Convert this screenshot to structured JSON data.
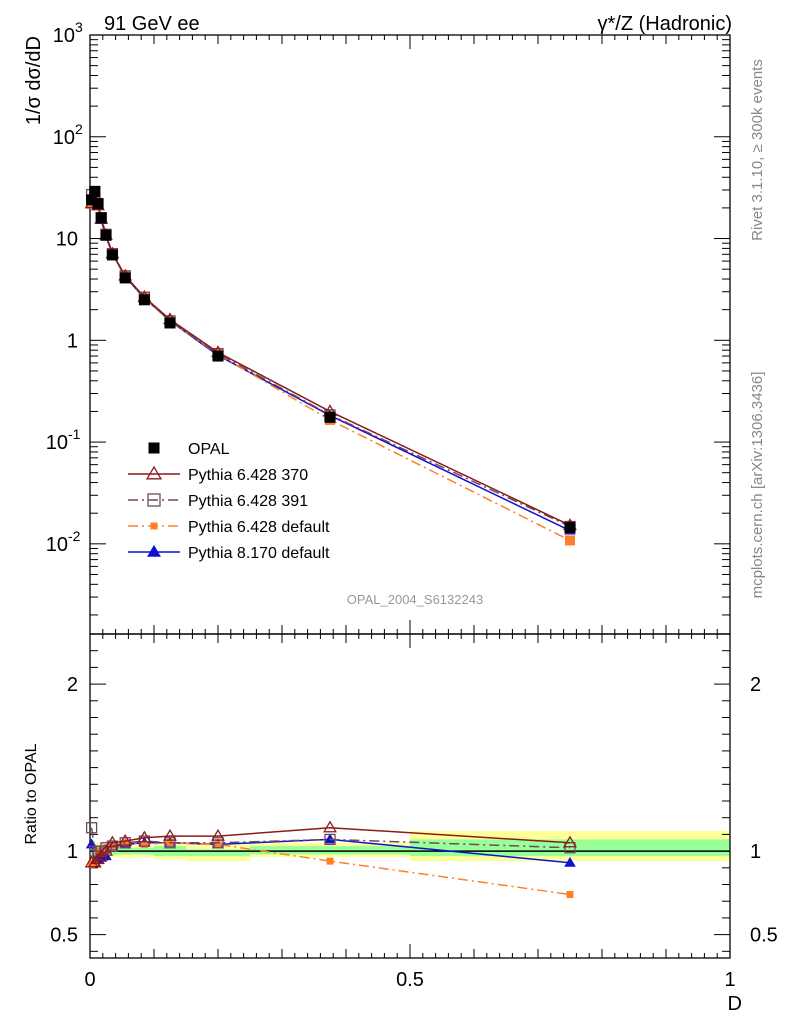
{
  "header": {
    "left": "91 GeV ee",
    "right": "γ*/Z (Hadronic)"
  },
  "side": {
    "rivet": "Rivet 3.1.10, ≥ 300k events",
    "mcplots": "mcplots.cern.ch [arXiv:1306.3436]"
  },
  "watermark": "OPAL_2004_S6132243",
  "chart_data": [
    {
      "type": "line",
      "title": "91 GeV ee",
      "ylabel": "1/σ dσ/dD",
      "yscale": "log",
      "ylim": [
        0.0013,
        1000
      ],
      "xlim": [
        0,
        1
      ],
      "ytick_labels": [
        "10^-2",
        "10^-1",
        "1",
        "10",
        "10^2",
        "10^3"
      ],
      "x": [
        0.0025,
        0.0075,
        0.0125,
        0.0175,
        0.025,
        0.035,
        0.055,
        0.085,
        0.125,
        0.2,
        0.375,
        0.75
      ],
      "series": [
        {
          "name": "OPAL",
          "color": "#000000",
          "marker": "filled-square",
          "values": [
            24,
            29,
            22,
            16,
            10.8,
            6.9,
            4.1,
            2.5,
            1.48,
            0.7,
            0.175,
            0.0145
          ]
        },
        {
          "name": "Pythia 6.428 370",
          "color": "#8b1a1a",
          "marker": "open-triangle",
          "dash": "solid",
          "values": [
            22,
            27,
            21,
            15.5,
            10.8,
            7.1,
            4.3,
            2.65,
            1.6,
            0.76,
            0.2,
            0.0152
          ]
        },
        {
          "name": "Pythia 6.428 391",
          "color": "#6e4a5a",
          "marker": "open-square",
          "dash": "dash-dot",
          "values": [
            27,
            29,
            22,
            16,
            11,
            7.1,
            4.3,
            2.65,
            1.55,
            0.74,
            0.185,
            0.0148
          ]
        },
        {
          "name": "Pythia 6.428 default",
          "color": "#ff7f2a",
          "marker": "filled-square",
          "dash": "dash-dot",
          "values": [
            22,
            27,
            22,
            16,
            11,
            7.1,
            4.3,
            2.6,
            1.55,
            0.73,
            0.165,
            0.0108
          ]
        },
        {
          "name": "Pythia 8.170 default",
          "color": "#1010d0",
          "marker": "filled-triangle",
          "dash": "solid",
          "values": [
            25,
            27,
            21,
            15.2,
            10.4,
            7.1,
            4.2,
            2.6,
            1.55,
            0.71,
            0.183,
            0.0135
          ]
        }
      ],
      "legend_position": "bottom-left"
    },
    {
      "type": "line",
      "ylabel": "Ratio to OPAL",
      "xlabel": "D",
      "ylim": [
        0.36,
        2.3
      ],
      "xlim": [
        0,
        1
      ],
      "ytick_labels": [
        "0.5",
        "1",
        "2"
      ],
      "xtick_labels": [
        "0",
        "0.5",
        "1"
      ],
      "x": [
        0.0025,
        0.0075,
        0.0125,
        0.0175,
        0.025,
        0.035,
        0.055,
        0.085,
        0.125,
        0.2,
        0.375,
        0.75
      ],
      "bins": [
        [
          0,
          0.005
        ],
        [
          0.005,
          0.01
        ],
        [
          0.01,
          0.015
        ],
        [
          0.015,
          0.02
        ],
        [
          0.02,
          0.03
        ],
        [
          0.03,
          0.04
        ],
        [
          0.04,
          0.07
        ],
        [
          0.07,
          0.1
        ],
        [
          0.1,
          0.15
        ],
        [
          0.15,
          0.25
        ],
        [
          0.25,
          0.5
        ],
        [
          0.5,
          1
        ]
      ],
      "band_green": [
        [
          0.96,
          1.04
        ],
        [
          0.97,
          1.03
        ],
        [
          0.97,
          1.03
        ],
        [
          0.97,
          1.03
        ],
        [
          0.975,
          1.025
        ],
        [
          0.975,
          1.025
        ],
        [
          0.98,
          1.02
        ],
        [
          0.98,
          1.02
        ],
        [
          0.97,
          1.03
        ],
        [
          0.97,
          1.01
        ],
        [
          0.98,
          1.03
        ],
        [
          0.97,
          1.07
        ]
      ],
      "band_yellow": [
        [
          0.93,
          1.07
        ],
        [
          0.95,
          1.05
        ],
        [
          0.95,
          1.05
        ],
        [
          0.95,
          1.05
        ],
        [
          0.96,
          1.04
        ],
        [
          0.96,
          1.04
        ],
        [
          0.96,
          1.04
        ],
        [
          0.965,
          1.035
        ],
        [
          0.95,
          1.05
        ],
        [
          0.94,
          1.04
        ],
        [
          0.965,
          1.05
        ],
        [
          0.94,
          1.12
        ]
      ],
      "series": [
        {
          "name": "Pythia 6.428 370",
          "color": "#8b1a1a",
          "marker": "open-triangle",
          "dash": "solid",
          "values": [
            0.93,
            0.93,
            0.95,
            0.97,
            1.0,
            1.05,
            1.06,
            1.08,
            1.09,
            1.09,
            1.14,
            1.05
          ]
        },
        {
          "name": "Pythia 6.428 391",
          "color": "#6e4a5a",
          "marker": "open-square",
          "dash": "dash-dot",
          "values": [
            1.14,
            1.0,
            1.0,
            1.0,
            1.02,
            1.03,
            1.05,
            1.06,
            1.05,
            1.05,
            1.07,
            1.02
          ]
        },
        {
          "name": "Pythia 6.428 default",
          "color": "#ff7f2a",
          "marker": "filled-square",
          "dash": "dash-dot",
          "values": [
            0.92,
            0.93,
            1.0,
            1.0,
            1.02,
            1.03,
            1.05,
            1.04,
            1.05,
            1.04,
            0.94,
            0.74
          ]
        },
        {
          "name": "Pythia 8.170 default",
          "color": "#1010d0",
          "marker": "filled-triangle",
          "dash": "solid",
          "values": [
            1.04,
            0.93,
            0.95,
            0.96,
            0.97,
            1.03,
            1.04,
            1.05,
            1.05,
            1.04,
            1.07,
            0.93
          ]
        }
      ]
    }
  ]
}
